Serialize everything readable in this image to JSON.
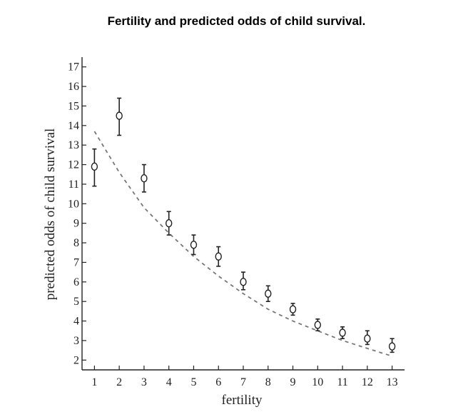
{
  "chart_data": {
    "type": "scatter",
    "title": "Fertility and predicted odds of child survival.",
    "xlabel": "fertility",
    "ylabel": "predicted odds of child survival",
    "xlim": [
      0.5,
      13.5
    ],
    "ylim": [
      1.5,
      17.5
    ],
    "xticks": [
      1,
      2,
      3,
      4,
      5,
      6,
      7,
      8,
      9,
      10,
      11,
      12,
      13
    ],
    "yticks": [
      2,
      3,
      4,
      5,
      6,
      7,
      8,
      9,
      10,
      11,
      12,
      13,
      14,
      15,
      16,
      17
    ],
    "points": [
      {
        "x": 1,
        "y": 11.9,
        "lo": 10.9,
        "hi": 12.8
      },
      {
        "x": 2,
        "y": 14.5,
        "lo": 13.5,
        "hi": 15.4
      },
      {
        "x": 3,
        "y": 11.3,
        "lo": 10.6,
        "hi": 12.0
      },
      {
        "x": 4,
        "y": 9.0,
        "lo": 8.4,
        "hi": 9.6
      },
      {
        "x": 5,
        "y": 7.9,
        "lo": 7.4,
        "hi": 8.4
      },
      {
        "x": 6,
        "y": 7.3,
        "lo": 6.8,
        "hi": 7.8
      },
      {
        "x": 7,
        "y": 6.0,
        "lo": 5.6,
        "hi": 6.5
      },
      {
        "x": 8,
        "y": 5.4,
        "lo": 5.0,
        "hi": 5.8
      },
      {
        "x": 9,
        "y": 4.6,
        "lo": 4.3,
        "hi": 4.9
      },
      {
        "x": 10,
        "y": 3.8,
        "lo": 3.5,
        "hi": 4.1
      },
      {
        "x": 11,
        "y": 3.4,
        "lo": 3.1,
        "hi": 3.7
      },
      {
        "x": 12,
        "y": 3.1,
        "lo": 2.8,
        "hi": 3.5
      },
      {
        "x": 13,
        "y": 2.7,
        "lo": 2.4,
        "hi": 3.1
      }
    ],
    "fitted_curve": {
      "style": "dashed",
      "x": [
        1,
        2,
        3,
        4,
        5,
        6,
        7,
        8,
        9,
        10,
        11,
        12,
        13
      ],
      "y": [
        13.7,
        11.6,
        9.8,
        8.5,
        7.3,
        6.3,
        5.4,
        4.6,
        4.0,
        3.5,
        3.0,
        2.6,
        2.2
      ]
    },
    "grid": false,
    "colors": {
      "points": "#222222",
      "curve": "#777777",
      "axis": "#222222"
    }
  }
}
